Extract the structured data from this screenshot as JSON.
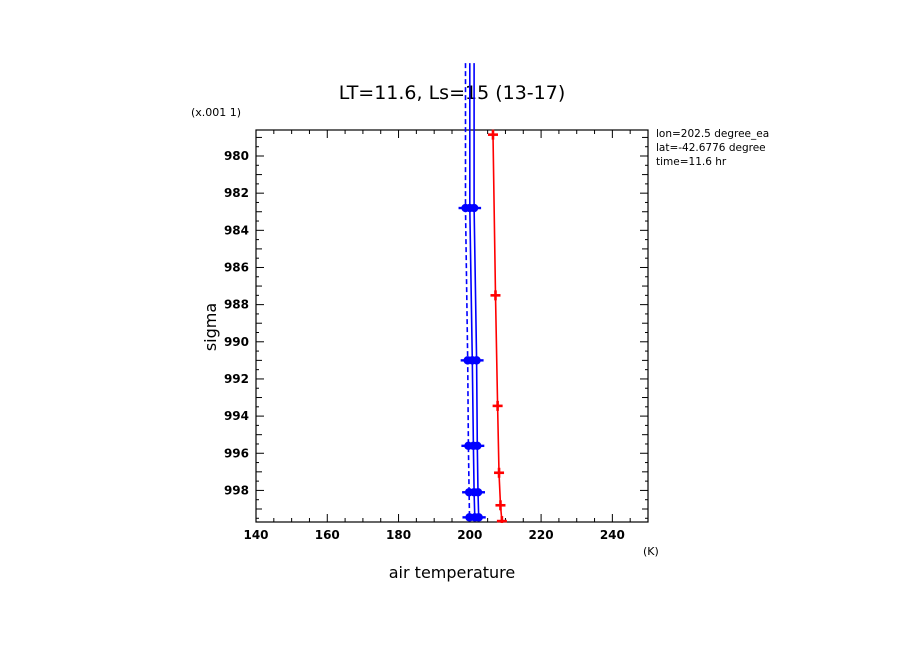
{
  "chart_data": {
    "type": "line",
    "title": "LT=11.6, Ls=15 (13-17)",
    "xlabel": "air temperature",
    "xunit": "(K)",
    "ylabel": "sigma",
    "yscale_note": "(x.001 1)",
    "xlim": [
      140,
      250
    ],
    "ylim": [
      999.7,
      978.6
    ],
    "y_inverted": true,
    "grid": false,
    "xticks": [
      140,
      160,
      180,
      200,
      220,
      240
    ],
    "yticks": [
      980,
      982,
      984,
      986,
      988,
      990,
      992,
      994,
      996,
      998
    ],
    "info": [
      "lon=202.5 degree_ea",
      "lat=-42.6776 degree",
      "time=11.6 hr"
    ],
    "series": [
      {
        "color": "#ff0000",
        "style": "solid",
        "marker": "cross",
        "points": [
          {
            "x": 206.5,
            "y": 978.85
          },
          {
            "x": 207.2,
            "y": 987.5
          },
          {
            "x": 207.8,
            "y": 993.45
          },
          {
            "x": 208.2,
            "y": 997.05
          },
          {
            "x": 208.6,
            "y": 998.8
          },
          {
            "x": 209.0,
            "y": 999.65
          }
        ]
      },
      {
        "color": "#0000ff",
        "style": "solid",
        "marker": "dot",
        "points": [
          {
            "x": 200.0,
            "y": 975.0
          },
          {
            "x": 200.0,
            "y": 982.8
          },
          {
            "x": 200.7,
            "y": 991.0
          },
          {
            "x": 201.0,
            "y": 995.6
          },
          {
            "x": 201.2,
            "y": 998.1
          },
          {
            "x": 201.4,
            "y": 999.45
          }
        ]
      },
      {
        "color": "#0000ff",
        "style": "dashed",
        "marker": "dot",
        "points": [
          {
            "x": 198.8,
            "y": 975.0
          },
          {
            "x": 198.8,
            "y": 982.8
          },
          {
            "x": 199.4,
            "y": 991.0
          },
          {
            "x": 199.6,
            "y": 995.6
          },
          {
            "x": 199.8,
            "y": 998.1
          },
          {
            "x": 199.9,
            "y": 999.45
          }
        ]
      },
      {
        "color": "#0000ff",
        "style": "solid",
        "marker": "dot",
        "points": [
          {
            "x": 201.2,
            "y": 975.0
          },
          {
            "x": 201.2,
            "y": 982.8
          },
          {
            "x": 201.9,
            "y": 991.0
          },
          {
            "x": 202.1,
            "y": 995.6
          },
          {
            "x": 202.3,
            "y": 998.1
          },
          {
            "x": 202.5,
            "y": 999.45
          }
        ]
      }
    ]
  }
}
